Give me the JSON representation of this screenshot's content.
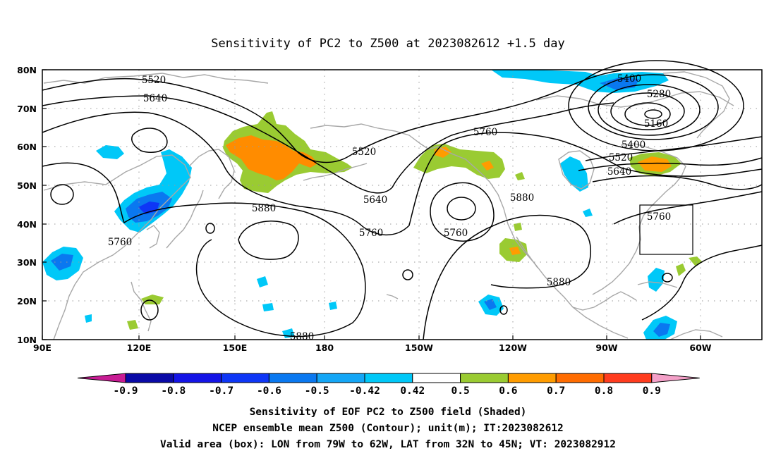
{
  "title": "Sensitivity of PC2 to Z500 at 2023082612 +1.5 day",
  "lat_ticks": [
    "80N",
    "70N",
    "60N",
    "50N",
    "40N",
    "30N",
    "20N",
    "10N"
  ],
  "lon_ticks": [
    "90E",
    "120E",
    "150E",
    "180",
    "150W",
    "120W",
    "90W",
    "60W"
  ],
  "contour_labels": [
    "5520",
    "5640",
    "5760",
    "5400",
    "5280",
    "5160",
    "5400",
    "5520",
    "5640",
    "5520",
    "5640",
    "5760",
    "5880",
    "5760",
    "5760",
    "5880",
    "5760",
    "5880",
    "5760",
    "5880"
  ],
  "colorbar": {
    "ticks": [
      "-0.9",
      "-0.8",
      "-0.7",
      "-0.6",
      "-0.5",
      "-0.42",
      "0.42",
      "0.5",
      "0.6",
      "0.7",
      "0.8",
      "0.9"
    ],
    "colors": [
      "#c81c94",
      "#0a0aa6",
      "#1414e6",
      "#0e36f6",
      "#0a78f0",
      "#14a6f6",
      "#00c8f8",
      "#ffffff",
      "#9acb32",
      "#ff9c00",
      "#ff6c00",
      "#ff3c1e",
      "#ff0000",
      "#f4a0c8"
    ]
  },
  "captions": {
    "line1": "Sensitivity of EOF PC2 to Z500 field (Shaded)",
    "line2": "NCEP ensemble mean Z500 (Contour); unit(m); IT:2023082612",
    "line3": "Valid area (box): LON from 79W to 62W, LAT from 32N to 45N; VT: 2023082912"
  },
  "valid_box": {
    "lon_min": -79,
    "lon_max": -62,
    "lat_min": 32,
    "lat_max": 45
  }
}
